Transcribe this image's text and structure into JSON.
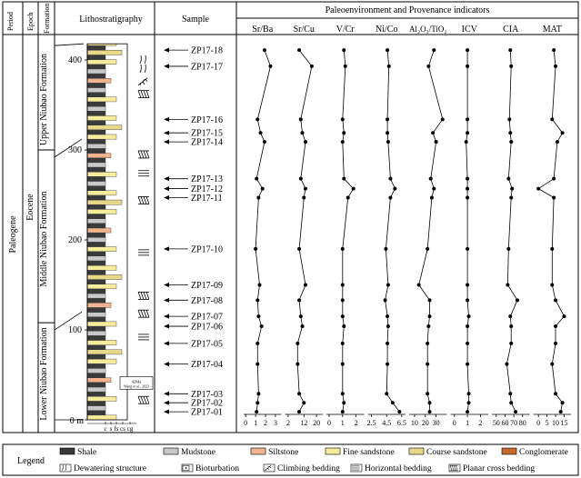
{
  "headers": {
    "period": "Period",
    "epoch": "Epoch",
    "formation": "Formation",
    "lithostratigraphy": "Lithostratigraphy",
    "sample": "Sample",
    "indicators": "Paleoenvironment and Provenance indicators"
  },
  "period_label": "Paleogene",
  "epoch_label": "Eocene",
  "formations": [
    {
      "name": "Upper Niubao Formation",
      "from": 300,
      "to": 418
    },
    {
      "name": "Middle Niubao Formation",
      "from": 108,
      "to": 300
    },
    {
      "name": "Lower Niubao Formation",
      "from": 0,
      "to": 108
    }
  ],
  "depth_axis": {
    "unit": "m",
    "ticks": [
      0,
      100,
      200,
      300,
      400
    ],
    "zero_label": "0 m",
    "max": 418
  },
  "grain_axis_labels": [
    "c",
    "s",
    "fs",
    "cs",
    "cg"
  ],
  "age_annotation": {
    "line1": "42Ma",
    "line2": "Wang et al., 2023",
    "depth": 28
  },
  "samples": [
    {
      "id": "ZP17-18",
      "depth": 411
    },
    {
      "id": "ZP17-17",
      "depth": 393
    },
    {
      "id": "ZP17-16",
      "depth": 334
    },
    {
      "id": "ZP17-15",
      "depth": 319
    },
    {
      "id": "ZP17-14",
      "depth": 309
    },
    {
      "id": "ZP17-13",
      "depth": 268
    },
    {
      "id": "ZP17-12",
      "depth": 257
    },
    {
      "id": "ZP17-11",
      "depth": 247
    },
    {
      "id": "ZP17-10",
      "depth": 190
    },
    {
      "id": "ZP17-09",
      "depth": 150
    },
    {
      "id": "ZP17-08",
      "depth": 133
    },
    {
      "id": "ZP17-07",
      "depth": 115
    },
    {
      "id": "ZP17-06",
      "depth": 104
    },
    {
      "id": "ZP17-05",
      "depth": 85
    },
    {
      "id": "ZP17-04",
      "depth": 62
    },
    {
      "id": "ZP17-03",
      "depth": 29
    },
    {
      "id": "ZP17-02",
      "depth": 19
    },
    {
      "id": "ZP17-01",
      "depth": 9
    }
  ],
  "legend": {
    "title": "Legend",
    "items": [
      {
        "label": "Shale",
        "color": "#3a3a3a",
        "symbol": "box"
      },
      {
        "label": "Mudstone",
        "color": "#c8c8c8",
        "symbol": "box"
      },
      {
        "label": "Siltstone",
        "color": "#f2b48e",
        "symbol": "box"
      },
      {
        "label": "Fine sandstone",
        "color": "#f7ec9c",
        "symbol": "box"
      },
      {
        "label": "Course sandstone",
        "color": "#e8d98a",
        "symbol": "box"
      },
      {
        "label": "Conglomerate",
        "color": "#c46a2b",
        "symbol": "box"
      },
      {
        "label": "Dewatering structure",
        "symbol": "dewater"
      },
      {
        "label": "Bioturbation",
        "symbol": "bio"
      },
      {
        "label": "Climbing bedding",
        "symbol": "climb"
      },
      {
        "label": "Horizontal bedding",
        "symbol": "hz"
      },
      {
        "label": "Planar cross bedding",
        "symbol": "planar"
      }
    ]
  },
  "structures": [
    {
      "type": "dewater",
      "depth": 400
    },
    {
      "type": "dewater",
      "depth": 390
    },
    {
      "type": "climb",
      "depth": 376
    },
    {
      "type": "planar",
      "depth": 362
    },
    {
      "type": "planar",
      "depth": 295
    },
    {
      "type": "hz",
      "depth": 274
    },
    {
      "type": "planar",
      "depth": 244
    },
    {
      "type": "hz",
      "depth": 186
    },
    {
      "type": "planar",
      "depth": 138
    },
    {
      "type": "planar",
      "depth": 118
    },
    {
      "type": "hz",
      "depth": 92
    },
    {
      "type": "planar",
      "depth": 22
    }
  ],
  "lithology_colors": {
    "shale": "#3a3a3a",
    "mudstone": "#c8c8c8",
    "siltstone": "#f2b48e",
    "fine": "#f7ec9c",
    "coarse": "#e8d98a",
    "conglomerate": "#c46a2b"
  },
  "lithology_pattern": [
    "fine",
    "shale",
    "mudstone",
    "shale",
    "fine",
    "shale",
    "mudstone",
    "shale",
    "siltstone",
    "shale",
    "mudstone",
    "shale",
    "fine",
    "shale",
    "coarse",
    "shale"
  ],
  "chart_data": {
    "type": "line",
    "orientation": "vertical-depth",
    "depths": [
      411,
      393,
      334,
      319,
      309,
      268,
      257,
      247,
      190,
      150,
      133,
      115,
      104,
      85,
      62,
      29,
      19,
      9
    ],
    "series": [
      {
        "name": "Sr/Ba",
        "ticks": [
          0,
          1,
          2,
          3
        ],
        "range": [
          -0.2,
          3.6
        ],
        "values": [
          1.9,
          2.5,
          1.2,
          1.5,
          1.9,
          1.1,
          1.7,
          1.3,
          1.0,
          1.4,
          1.2,
          1.3,
          1.6,
          1.2,
          1.2,
          1.3,
          1.2,
          1.1
        ]
      },
      {
        "name": "Sr/Cu",
        "ticks": [
          2,
          12,
          20
        ],
        "range": [
          0,
          24
        ],
        "values": [
          9,
          17,
          10,
          11,
          13,
          10,
          13,
          12,
          9,
          13,
          9,
          10,
          11,
          8,
          8,
          9,
          12,
          9
        ]
      },
      {
        "name": "V/Cr",
        "ticks": [
          0,
          1,
          2
        ],
        "range": [
          -0.2,
          2.6
        ],
        "values": [
          1.1,
          1.2,
          1.0,
          1.1,
          1.0,
          1.1,
          1.8,
          1.4,
          1.0,
          1.0,
          1.0,
          1.0,
          1.1,
          1.0,
          1.0,
          1.0,
          1.1,
          1.0
        ]
      },
      {
        "name": "Ni/Co",
        "ticks": [
          2.5,
          4.5,
          6.5
        ],
        "range": [
          2.0,
          7.0
        ],
        "values": [
          4.6,
          4.8,
          4.6,
          4.6,
          4.7,
          5.0,
          5.6,
          5.0,
          4.4,
          4.7,
          4.3,
          4.6,
          4.7,
          4.6,
          4.6,
          4.5,
          5.3,
          6.2
        ]
      },
      {
        "name": "Al₂O₃/TiO₂",
        "ticks": [
          10,
          20,
          30
        ],
        "range": [
          5,
          40
        ],
        "values": [
          28,
          23,
          36,
          27,
          30,
          25,
          28,
          26,
          22,
          14,
          24,
          24,
          23,
          22,
          22,
          22,
          24,
          24
        ]
      },
      {
        "name": "ICV",
        "ticks": [
          0,
          1,
          2
        ],
        "range": [
          -0.3,
          2.6
        ],
        "values": [
          1.0,
          1.0,
          1.0,
          1.0,
          0.9,
          1.0,
          1.0,
          1.0,
          1.0,
          1.0,
          1.0,
          1.1,
          1.0,
          1.0,
          1.0,
          1.1,
          1.1,
          1.0
        ]
      },
      {
        "name": "CIA",
        "ticks": [
          50,
          60,
          70,
          80
        ],
        "range": [
          45,
          88
        ],
        "values": [
          66,
          67,
          65,
          66,
          67,
          64,
          68,
          67,
          64,
          63,
          74,
          66,
          67,
          67,
          62,
          66,
          67,
          72
        ]
      },
      {
        "name": "MAT",
        "ticks": [
          0,
          5,
          10,
          15
        ],
        "range": [
          -3,
          19
        ],
        "values": [
          9,
          10,
          8,
          14,
          11,
          9,
          0,
          9,
          8,
          8,
          10,
          15,
          10,
          10,
          8,
          10,
          14,
          13
        ]
      }
    ]
  }
}
